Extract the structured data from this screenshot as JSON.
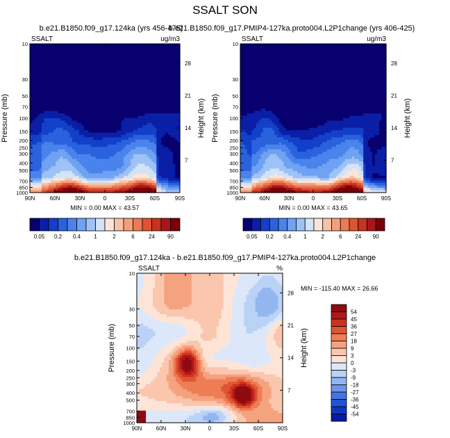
{
  "chart_data": {
    "type": "heatmap",
    "title": "SSALT SON",
    "panels": [
      {
        "title": "b.e21.B1850.f09_g17.124ka (yrs 456-475)",
        "variable": "SSALT",
        "units": "ug/m3",
        "xlabel": "",
        "ylabel": "Pressure (mb)",
        "ylabel_right": "Height (km)",
        "xticks": [
          "90N",
          "60N",
          "30N",
          "0",
          "30S",
          "60S",
          "90S"
        ],
        "yticks": [
          "10",
          "30",
          "50",
          "70",
          "100",
          "150",
          "200",
          "250",
          "300",
          "400",
          "500",
          "700",
          "850",
          "1000"
        ],
        "height_ticks": [
          "28",
          "21",
          "14",
          "7"
        ],
        "ylim": [
          1000,
          10
        ],
        "stats": "MIN =   0.00  MAX =  43.57",
        "min": 0.0,
        "max": 43.57
      },
      {
        "title": "b.e21.B1850.f09_g17.PMIP4-127ka.proto004.L2P1change (yrs 406-425)",
        "variable": "SSALT",
        "units": "ug/m3",
        "xlabel": "",
        "ylabel": "Pressure (mb)",
        "ylabel_right": "Height (km)",
        "xticks": [
          "90N",
          "60N",
          "30N",
          "0",
          "30S",
          "60S",
          "90S"
        ],
        "yticks": [
          "10",
          "30",
          "50",
          "70",
          "100",
          "150",
          "200",
          "250",
          "300",
          "400",
          "500",
          "700",
          "850",
          "1000"
        ],
        "height_ticks": [
          "28",
          "21",
          "14",
          "7"
        ],
        "ylim": [
          1000,
          10
        ],
        "stats": "MIN =   0.00  MAX =  43.65",
        "min": 0.0,
        "max": 43.65
      },
      {
        "title": "b.e21.B1850.f09_g17.124ka - b.e21.B1850.f09_g17.PMIP4-127ka.proto004.L2P1change",
        "variable": "SSALT",
        "units": "%",
        "xlabel": "",
        "ylabel": "Pressure (mb)",
        "ylabel_right": "Height (km)",
        "xticks": [
          "90N",
          "60N",
          "30N",
          "0",
          "30S",
          "60S",
          "90S"
        ],
        "yticks": [
          "10",
          "30",
          "50",
          "70",
          "100",
          "150",
          "200",
          "250",
          "300",
          "400",
          "500",
          "700",
          "850",
          "1000"
        ],
        "height_ticks": [
          "28",
          "21",
          "14",
          "7"
        ],
        "ylim": [
          1000,
          10
        ],
        "stats": "MIN = -115.40  MAX =  26.66",
        "min": -115.4,
        "max": 26.66
      }
    ],
    "colorbar_top": {
      "labels": [
        "0.05",
        "0.2",
        "0.4",
        "1",
        "2",
        "6",
        "24",
        "90"
      ],
      "colors": [
        "#08006f",
        "#0a1fa6",
        "#1340c9",
        "#2a62de",
        "#4a83ec",
        "#6fa2f2",
        "#9fc2f6",
        "#d3e3f8",
        "#fbe5d9",
        "#f8c2a6",
        "#f3a07a",
        "#ec7a52",
        "#de5333",
        "#c8321f",
        "#a8151a",
        "#7a0005"
      ]
    },
    "colorbar_diff": {
      "labels": [
        "54",
        "45",
        "36",
        "27",
        "18",
        "9",
        "3",
        "0",
        "-3",
        "-9",
        "-18",
        "-27",
        "-36",
        "-45",
        "-54"
      ],
      "colors": [
        "#8e0a0f",
        "#b1171a",
        "#cc3322",
        "#e05532",
        "#ee7d55",
        "#f5a27f",
        "#fac6ad",
        "#fde4d6",
        "#dce8fa",
        "#bad2f6",
        "#93b6f1",
        "#6b95ea",
        "#4474e2",
        "#2353d6",
        "#0f36bf",
        "#071ca0"
      ]
    }
  }
}
